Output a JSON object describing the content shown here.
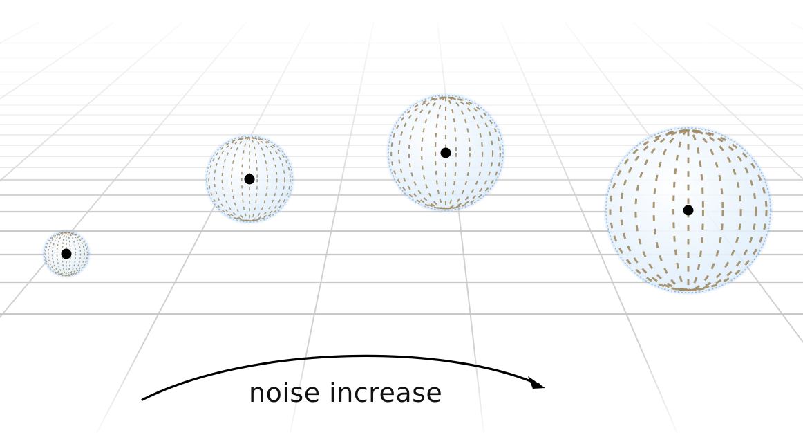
{
  "caption": "noise increase",
  "colors": {
    "grid": "#c8c8c8",
    "sphere_fill": "#eaf4fc",
    "sphere_edge": "#8fb6e0",
    "meridian": "#a08a62",
    "center_dot": "#000000",
    "arrow": "#000000"
  },
  "spheres": [
    {
      "name": "sphere-1",
      "noise_level": 1
    },
    {
      "name": "sphere-2",
      "noise_level": 2
    },
    {
      "name": "sphere-3",
      "noise_level": 3
    },
    {
      "name": "sphere-4",
      "noise_level": 4
    }
  ]
}
